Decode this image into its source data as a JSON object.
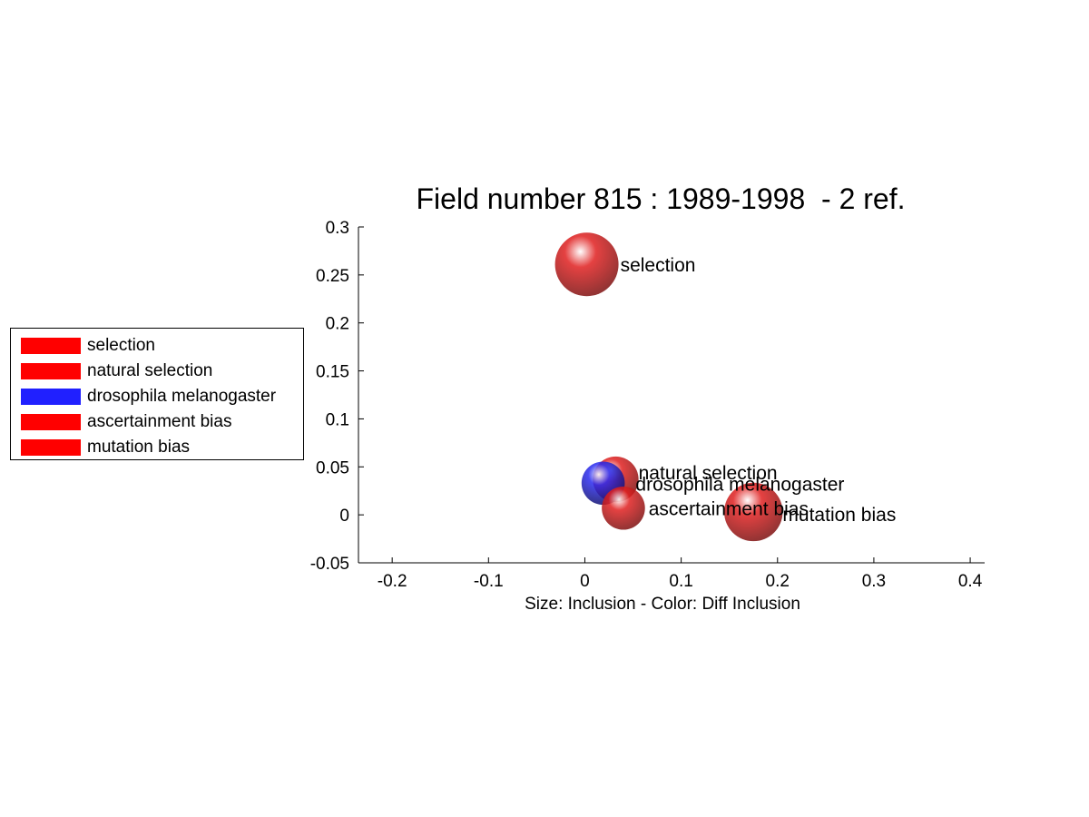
{
  "chart_data": {
    "type": "scatter",
    "title": "Field number 815 : 1989-1998  - 2 ref.",
    "xlabel": "Size: Inclusion - Color: Diff Inclusion",
    "ylabel": "",
    "xlim": [
      -0.235,
      0.415
    ],
    "ylim": [
      -0.05,
      0.3
    ],
    "xticks": [
      "-0.2",
      "-0.1",
      "0",
      "0.1",
      "0.2",
      "0.3",
      "0.4"
    ],
    "xtick_values": [
      -0.2,
      -0.1,
      0,
      0.1,
      0.2,
      0.3,
      0.4
    ],
    "yticks": [
      "-0.05",
      "0",
      "0.05",
      "0.1",
      "0.15",
      "0.2",
      "0.25",
      "0.3"
    ],
    "ytick_values": [
      -0.05,
      0,
      0.05,
      0.1,
      0.15,
      0.2,
      0.25,
      0.3
    ],
    "grid": false,
    "legend_position": "left",
    "points": [
      {
        "label": "selection",
        "x": 0.002,
        "y": 0.261,
        "size": 1.0,
        "color": "#e02020"
      },
      {
        "label": "natural selection",
        "x": 0.032,
        "y": 0.037,
        "size": 0.72,
        "color": "#e02020"
      },
      {
        "label": "drosophila melanogaster",
        "x": 0.019,
        "y": 0.033,
        "size": 0.68,
        "color": "#2a2af0"
      },
      {
        "label": "ascertainment bias",
        "x": 0.04,
        "y": 0.007,
        "size": 0.68,
        "color": "#e02020"
      },
      {
        "label": "mutation bias",
        "x": 0.175,
        "y": 0.003,
        "size": 0.92,
        "color": "#e02020"
      }
    ]
  }
}
